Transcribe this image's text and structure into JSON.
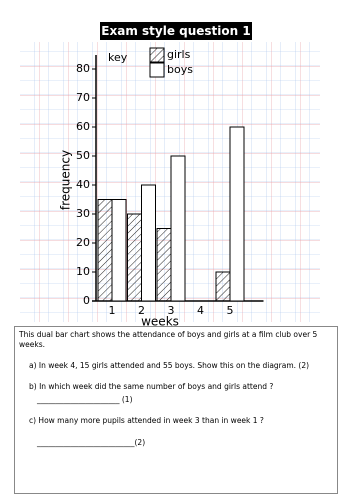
{
  "header": {
    "title": "Exam style question 1"
  },
  "chart_data": {
    "type": "bar",
    "categories": [
      "1",
      "2",
      "3",
      "4",
      "5"
    ],
    "series": [
      {
        "name": "girls",
        "values": [
          35,
          30,
          25,
          null,
          10
        ]
      },
      {
        "name": "boys",
        "values": [
          35,
          40,
          50,
          null,
          60
        ]
      }
    ],
    "legend_title": "key",
    "x_label": "weeks",
    "y_label": "frequency",
    "ylim": [
      0,
      80
    ],
    "yticks": [
      0,
      10,
      20,
      30,
      40,
      50,
      60,
      70,
      80
    ]
  },
  "text": {
    "intro": "This dual bar chart shows the attendance of boys and girls at a film club over 5 weeks.",
    "lines": [
      "a) In week 4, 15 girls attended and 55 boys. Show this on the diagram. (2)",
      "b) In which week did the same number of boys and girls attend ?",
      "______________________  (1)",
      "c) How many more pupils attended in week 3 than in week 1 ?",
      "__________________________(2)"
    ]
  }
}
